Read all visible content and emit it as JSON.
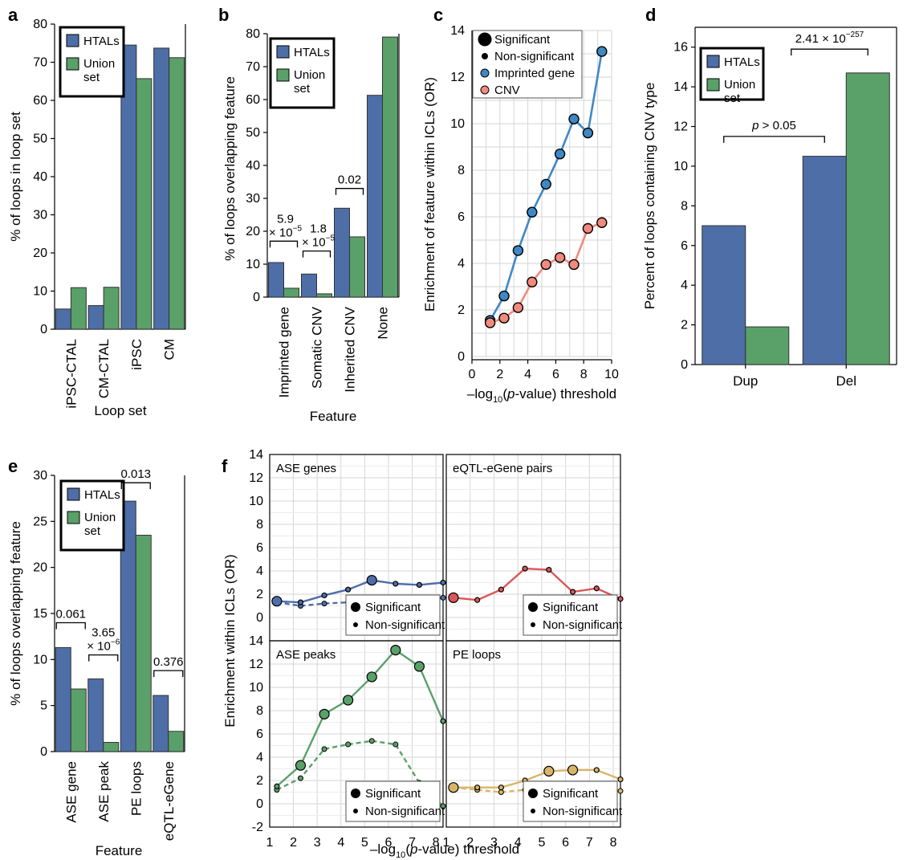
{
  "colors": {
    "htal": "#4E6EA8",
    "union": "#5AA069",
    "imprinted": "#3F88C5",
    "cnv": "#F08A7E",
    "red": "#D9575A",
    "yellow": "#D9B56A",
    "grid": "#d6d6d6"
  },
  "legend_bars": {
    "htal": "HTALs",
    "union_l1": "Union",
    "union_l2": "set"
  },
  "legend_sig": {
    "sig": "Significant",
    "nonsig": "Non-significant"
  },
  "chart_data": [
    {
      "panel": "a",
      "type": "bar",
      "categories": [
        "iPSC-CTAL",
        "CM-CTAL",
        "iPSC",
        "CM"
      ],
      "series": [
        {
          "name": "HTALs",
          "values": [
            5.3,
            6.2,
            74.5,
            73.7
          ]
        },
        {
          "name": "Union set",
          "values": [
            10.9,
            11.0,
            65.7,
            71.2
          ]
        }
      ],
      "ylim": [
        0,
        80
      ],
      "yticks": [
        0,
        10,
        20,
        30,
        40,
        50,
        60,
        70,
        80
      ],
      "ylabel": "% of loops in loop set",
      "xlabel": "Loop set"
    },
    {
      "panel": "b",
      "type": "bar",
      "categories": [
        "Imprinted gene",
        "Somatic CNV",
        "Inherited CNV",
        "None"
      ],
      "series": [
        {
          "name": "HTALs",
          "values": [
            10.5,
            7.0,
            27.0,
            61.3
          ]
        },
        {
          "name": "Union set",
          "values": [
            2.7,
            1.0,
            18.3,
            79.0
          ]
        }
      ],
      "ylim": [
        0,
        80
      ],
      "yticks": [
        0,
        10,
        20,
        30,
        40,
        50,
        60,
        70,
        80
      ],
      "ylabel": "% of loops overlapping feature",
      "xlabel": "Feature",
      "annotations": [
        {
          "cat": 0,
          "y": 17,
          "lines": [
            "5.9",
            "× 10"
          ],
          "sup": "−5"
        },
        {
          "cat": 1,
          "y": 14,
          "lines": [
            "1.8",
            "× 10"
          ],
          "sup": "−5"
        },
        {
          "cat": 2,
          "y": 33,
          "lines": [
            "0.02"
          ],
          "sup": ""
        }
      ]
    },
    {
      "panel": "c",
      "type": "line",
      "xlim": [
        0,
        10
      ],
      "ylim": [
        0,
        14
      ],
      "xticks": [
        0,
        2,
        4,
        6,
        8,
        10
      ],
      "yticks": [
        0,
        2,
        4,
        6,
        8,
        10,
        12,
        14
      ],
      "ylabel": "Enrichment of feature within ICLs (OR)",
      "xlabel": {
        "prefix": "–log",
        "sub": "10",
        "mid": "(",
        "italic": "p",
        "suffix": "-value) threshold"
      },
      "legend": [
        "Significant",
        "Non-significant",
        "Imprinted gene",
        "CNV"
      ],
      "series": [
        {
          "name": "Imprinted gene",
          "x": [
            1.3,
            2.3,
            3.3,
            4.3,
            5.3,
            6.3,
            7.3,
            8.3,
            9.3
          ],
          "y": [
            1.55,
            2.6,
            4.55,
            6.2,
            7.4,
            8.7,
            10.2,
            9.6,
            13.1
          ]
        },
        {
          "name": "CNV",
          "x": [
            1.3,
            2.3,
            3.3,
            4.3,
            5.3,
            6.3,
            7.3,
            8.3,
            9.3
          ],
          "y": [
            1.45,
            1.65,
            2.1,
            3.2,
            3.95,
            4.25,
            3.95,
            5.5,
            5.75
          ]
        }
      ]
    },
    {
      "panel": "d",
      "type": "bar",
      "categories": [
        "Dup",
        "Del"
      ],
      "series": [
        {
          "name": "HTALs",
          "values": [
            7.0,
            10.5
          ]
        },
        {
          "name": "Union set",
          "values": [
            1.9,
            14.7
          ]
        }
      ],
      "ylim": [
        0,
        17
      ],
      "yticks": [
        0,
        2,
        4,
        6,
        8,
        10,
        12,
        14,
        16
      ],
      "ylabel": "Percent of loops containing CNV type",
      "annotations": {
        "p1": {
          "pre": "p",
          "post": " > 0.05"
        },
        "p2": {
          "base": "2.41 × 10",
          "sup": "−257"
        }
      }
    },
    {
      "panel": "e",
      "type": "bar",
      "categories": [
        "ASE gene",
        "ASE peak",
        "PE loops",
        "eQTL-eGene"
      ],
      "series": [
        {
          "name": "HTALs",
          "values": [
            11.3,
            7.9,
            27.2,
            6.1
          ]
        },
        {
          "name": "Union set",
          "values": [
            6.8,
            1.0,
            23.5,
            2.2
          ]
        }
      ],
      "ylim": [
        0,
        30
      ],
      "yticks": [
        0,
        5,
        10,
        15,
        20,
        25,
        30
      ],
      "ylabel": "% of loops overlapping feature",
      "xlabel": "Feature",
      "annotations": [
        {
          "cat": 0,
          "y": 14,
          "lines": [
            "0.061"
          ],
          "sup": ""
        },
        {
          "cat": 1,
          "y": 10.5,
          "lines": [
            "3.65",
            "× 10"
          ],
          "sup": "−6"
        },
        {
          "cat": 2,
          "y": 29.2,
          "lines": [
            "0.013"
          ],
          "sup": ""
        },
        {
          "cat": 3,
          "y": 8.8,
          "lines": [
            "0.376"
          ],
          "sup": ""
        }
      ]
    },
    {
      "panel": "f",
      "type": "line",
      "xlim": [
        1,
        8.3
      ],
      "ylim": [
        -2,
        14
      ],
      "xticks": [
        1,
        2,
        3,
        4,
        5,
        6,
        7,
        8
      ],
      "yticks": [
        -2,
        0,
        2,
        4,
        6,
        8,
        10,
        12,
        14
      ],
      "ylabel": "Enrichment within ICLs (OR)",
      "subplots": [
        {
          "title": "ASE genes",
          "color": "#4E6EA8",
          "x": [
            1.3,
            2.3,
            3.3,
            4.3,
            5.3,
            6.3,
            7.3,
            8.3
          ],
          "sig": [
            1.4,
            1.3,
            1.9,
            2.4,
            3.2,
            2.9,
            2.8,
            3.0
          ],
          "sig_big": [
            true,
            false,
            false,
            false,
            true,
            false,
            false,
            false
          ],
          "nonsig": [
            1.3,
            1.0,
            1.2,
            1.3,
            1.6,
            1.6,
            1.3,
            1.7
          ]
        },
        {
          "title": "eQTL-eGene pairs",
          "color": "#D9575A",
          "x": [
            1.3,
            2.3,
            3.3,
            4.3,
            5.3,
            6.3,
            7.3,
            8.3
          ],
          "sig": [
            1.7,
            1.5,
            2.4,
            4.2,
            4.1,
            2.2,
            2.5,
            1.6
          ],
          "sig_big": [
            true,
            false,
            false,
            false,
            false,
            false,
            false,
            false
          ],
          "nonsig": []
        },
        {
          "title": "ASE peaks",
          "color": "#5AA069",
          "x": [
            1.3,
            2.3,
            3.3,
            4.3,
            5.3,
            6.3,
            7.3,
            8.3
          ],
          "sig": [
            1.5,
            3.3,
            7.7,
            8.9,
            10.9,
            13.2,
            11.8,
            7.1
          ],
          "sig_big": [
            false,
            true,
            true,
            true,
            true,
            true,
            true,
            false
          ],
          "nonsig": [
            1.2,
            2.2,
            4.7,
            5.1,
            5.4,
            5.1,
            1.8,
            -0.2
          ]
        },
        {
          "title": "PE loops",
          "color": "#D9B56A",
          "x": [
            1.3,
            2.3,
            3.3,
            4.3,
            5.3,
            6.3,
            7.3,
            8.3
          ],
          "sig": [
            1.4,
            1.4,
            1.4,
            2.0,
            2.8,
            2.9,
            2.9,
            2.1
          ],
          "sig_big": [
            true,
            false,
            false,
            false,
            true,
            true,
            false,
            false
          ],
          "nonsig": [
            1.4,
            1.2,
            1.0,
            1.2,
            1.5,
            1.5,
            1.3,
            1.1
          ]
        }
      ]
    }
  ],
  "labels_letters": [
    "a",
    "b",
    "c",
    "d",
    "e",
    "f"
  ],
  "f_xlabel": {
    "prefix": "–log",
    "sub": "10",
    "mid": "(",
    "italic": "p",
    "suffix": "-value) threshold"
  }
}
